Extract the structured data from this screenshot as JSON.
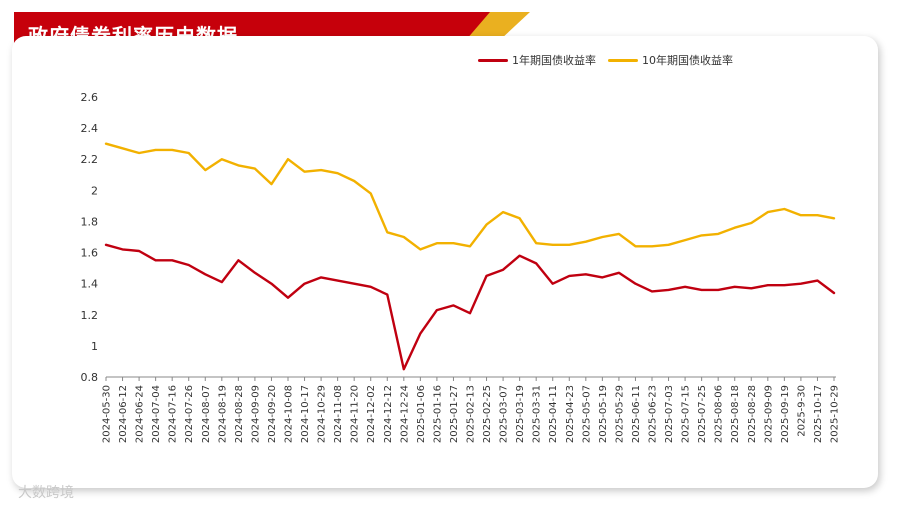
{
  "header": {
    "title": "政府债券利率历史数据"
  },
  "watermark": "大数跨境",
  "colors": {
    "banner_red": "#c6000b",
    "banner_gold": "#eab020",
    "series_1y": "#c00010",
    "series_10y": "#f2b100"
  },
  "chart_data": {
    "type": "line",
    "title": "政府债券利率历史数据",
    "xlabel": "",
    "ylabel": "",
    "ylim": [
      0.8,
      2.6
    ],
    "yticks": [
      0.8,
      1,
      1.2,
      1.4,
      1.6,
      1.8,
      2,
      2.2,
      2.4,
      2.6
    ],
    "ytick_labels": [
      "0.8",
      "1",
      "1.2",
      "1.4",
      "1.6",
      "1.8",
      "2",
      "2.2",
      "2.4",
      "2.6"
    ],
    "grid": false,
    "legend_position": "top-right",
    "x_labels": [
      "2024-05-30",
      "2024-06-12",
      "2024-06-24",
      "2024-07-04",
      "2024-07-16",
      "2024-07-26",
      "2024-08-07",
      "2024-08-19",
      "2024-08-28",
      "2024-09-09",
      "2024-09-20",
      "2024-10-08",
      "2024-10-17",
      "2024-10-29",
      "2024-11-08",
      "2024-11-20",
      "2024-12-02",
      "2024-12-12",
      "2024-12-24",
      "2025-01-06",
      "2025-01-16",
      "2025-01-27",
      "2025-02-13",
      "2025-02-25",
      "2025-03-07",
      "2025-03-19",
      "2025-03-31",
      "2025-04-11",
      "2025-04-23",
      "2025-05-07",
      "2025-05-19",
      "2025-05-29",
      "2025-06-11",
      "2025-06-23",
      "2025-07-03",
      "2025-07-15",
      "2025-07-25",
      "2025-08-06",
      "2025-08-18",
      "2025-08-28",
      "2025-09-09",
      "2025-09-19",
      "2025-9-30",
      "2025-10-17",
      "2025-10-29"
    ],
    "series": [
      {
        "name": "1年期国债收益率",
        "color": "#c00010",
        "values": [
          1.65,
          1.62,
          1.61,
          1.55,
          1.55,
          1.52,
          1.46,
          1.41,
          1.55,
          1.47,
          1.4,
          1.31,
          1.4,
          1.44,
          1.42,
          1.4,
          1.38,
          1.33,
          0.85,
          1.08,
          1.23,
          1.26,
          1.21,
          1.45,
          1.49,
          1.58,
          1.53,
          1.4,
          1.45,
          1.46,
          1.44,
          1.47,
          1.4,
          1.35,
          1.36,
          1.38,
          1.36,
          1.36,
          1.38,
          1.37,
          1.39,
          1.39,
          1.4,
          1.42,
          1.34
        ]
      },
      {
        "name": "10年期国债收益率",
        "color": "#f2b100",
        "values": [
          2.3,
          2.27,
          2.24,
          2.26,
          2.26,
          2.24,
          2.13,
          2.2,
          2.16,
          2.14,
          2.04,
          2.2,
          2.12,
          2.13,
          2.11,
          2.06,
          1.98,
          1.73,
          1.7,
          1.62,
          1.66,
          1.66,
          1.64,
          1.78,
          1.86,
          1.82,
          1.66,
          1.65,
          1.65,
          1.67,
          1.7,
          1.72,
          1.64,
          1.64,
          1.65,
          1.68,
          1.71,
          1.72,
          1.76,
          1.79,
          1.86,
          1.88,
          1.84,
          1.84,
          1.82
        ]
      }
    ]
  }
}
